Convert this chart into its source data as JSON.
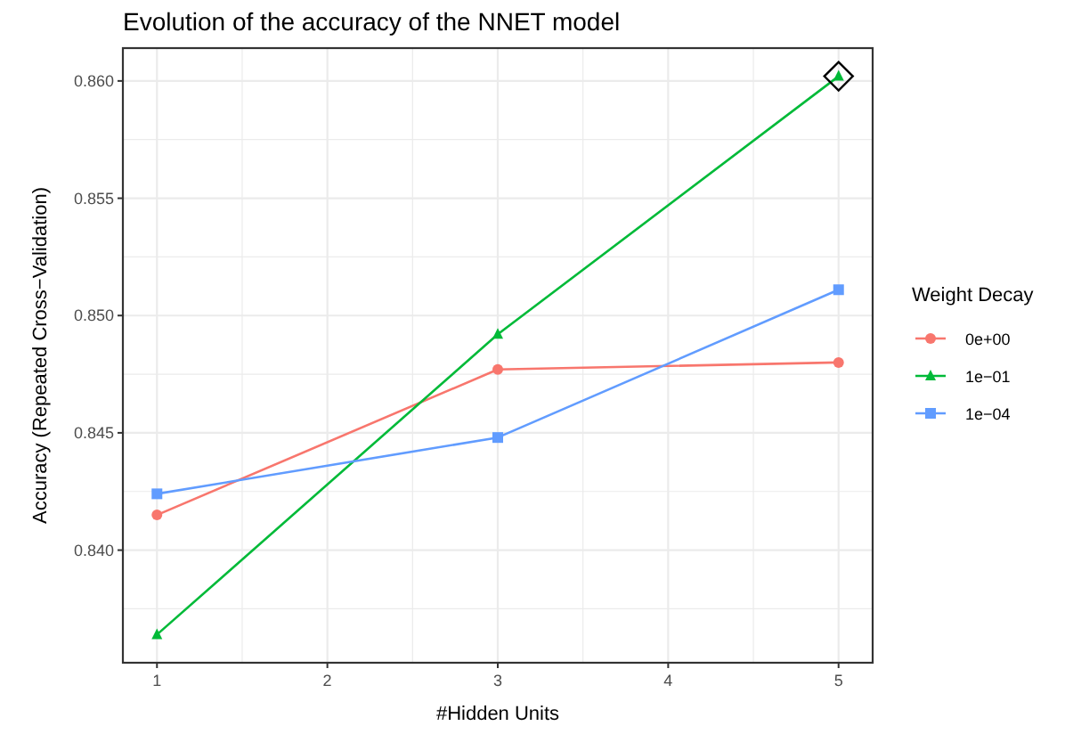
{
  "chart_data": {
    "type": "line",
    "title": "Evolution of the accuracy of the NNET model",
    "xlabel": "#Hidden Units",
    "ylabel": "Accuracy (Repeated Cross−Validation)",
    "legend_title": "Weight Decay",
    "x": [
      1,
      3,
      5
    ],
    "series": [
      {
        "name": "0e+00",
        "color": "#f8766d",
        "marker": "circle",
        "values": [
          0.8415,
          0.8477,
          0.848
        ]
      },
      {
        "name": "1e−01",
        "color": "#00ba38",
        "marker": "triangle",
        "values": [
          0.8364,
          0.8492,
          0.8602
        ]
      },
      {
        "name": "1e−04",
        "color": "#619cff",
        "marker": "square",
        "values": [
          0.8424,
          0.8448,
          0.8511
        ]
      },
      {
        "type": "scatter",
        "color": "#000000",
        "marker": "diamond",
        "x": [
          5
        ],
        "values": [
          0.8602
        ]
      }
    ],
    "xlim": [
      0.8,
      5.2
    ],
    "xticks": [
      1,
      {
        "value": 1.5,
        "label": null
      },
      2,
      {
        "value": 2.5,
        "label": null
      },
      3,
      {
        "value": 3.5,
        "label": null
      },
      4,
      {
        "value": 4.5,
        "label": null
      },
      5
    ],
    "ylim": [
      0.8352,
      0.8614
    ],
    "yticks": [
      {
        "value": 0.8375,
        "label": null
      },
      {
        "value": 0.84,
        "label": "0.840"
      },
      {
        "value": 0.8425,
        "label": null
      },
      {
        "value": 0.845,
        "label": "0.845"
      },
      {
        "value": 0.8475,
        "label": null
      },
      {
        "value": 0.85,
        "label": "0.850"
      },
      {
        "value": 0.8525,
        "label": null
      },
      {
        "value": 0.855,
        "label": "0.855"
      },
      {
        "value": 0.8575,
        "label": null
      },
      {
        "value": 0.86,
        "label": "0.860"
      }
    ],
    "grid": true,
    "legend": "right"
  }
}
